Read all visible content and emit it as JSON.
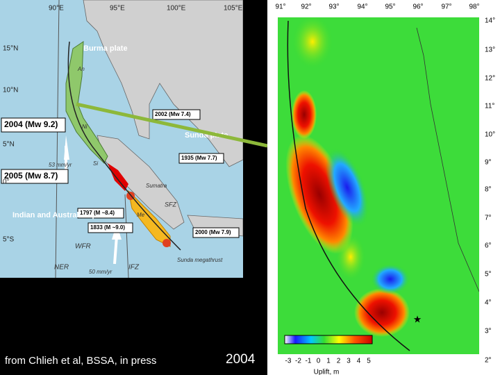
{
  "left_map": {
    "lon_labels": [
      "90°E",
      "95°E",
      "100°E",
      "105°E"
    ],
    "lat_labels": [
      "15°N",
      "10°N",
      "5°N",
      "0°",
      "5°S"
    ],
    "plate_labels": [
      "Burma plate",
      "Sunda plate",
      "Indian and Australian plates"
    ],
    "event_labels": [
      "2004 (Mw 9.2)",
      "2005 (Mw 8.7)",
      "2002 (Mw 7.4)",
      "1935 (Mw 7.7)",
      "1797 (M ~8.4)",
      "1833 (M ~9.0)",
      "2000 (Mw 7.9)"
    ],
    "feature_labels": [
      "53 mm/yr",
      "50 mm/yr",
      "WFR",
      "NER",
      "IFZ",
      "SFZ",
      "Sumatra",
      "Sunda megathrust",
      "An",
      "Ni",
      "Si",
      "Me"
    ]
  },
  "right_map": {
    "lon_labels": [
      "91°",
      "92°",
      "93°",
      "94°",
      "95°",
      "96°",
      "97°",
      "98°"
    ],
    "lat_labels": [
      "14°",
      "13°",
      "12°",
      "11°",
      "10°",
      "9°",
      "8°",
      "7°",
      "6°",
      "5°",
      "4°",
      "3°",
      "2°"
    ],
    "colorbar_ticks": [
      "-3",
      "-2",
      "-1",
      "0",
      "1",
      "2",
      "3",
      "4",
      "5"
    ],
    "colorbar_label": "Uplift, m"
  },
  "caption": "from Chlieh et al, BSSA, in press",
  "year": "2004"
}
